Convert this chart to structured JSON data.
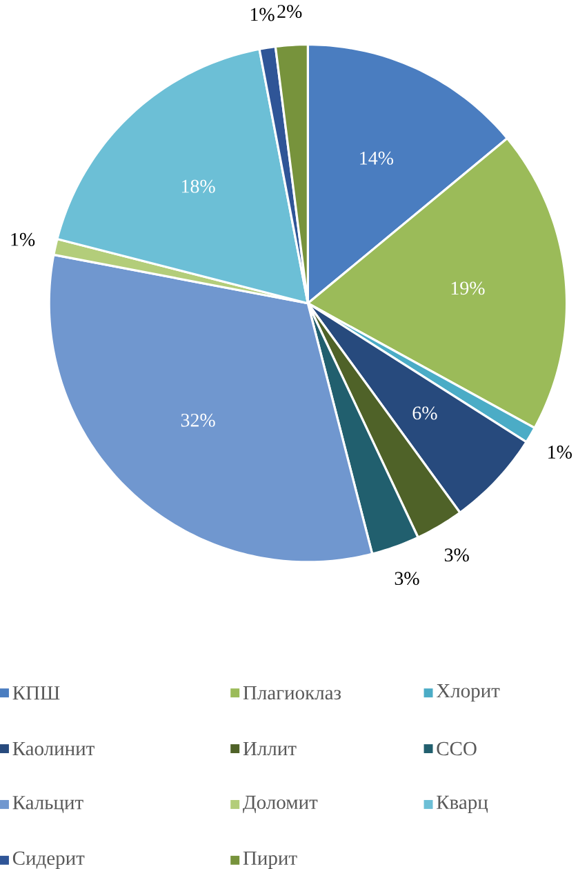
{
  "chart_data": {
    "type": "pie",
    "categories": [
      "КПШ",
      "Плагиоклаз",
      "Хлорит",
      "Каолинит",
      "Иллит",
      "ССО",
      "Кальцит",
      "Доломит",
      "Кварц",
      "Сидерит",
      "Пирит"
    ],
    "values": [
      14,
      19,
      1,
      6,
      3,
      3,
      32,
      1,
      18,
      1,
      2
    ],
    "value_labels": [
      "14%",
      "19%",
      "1%",
      "6%",
      "3%",
      "3%",
      "32%",
      "1%",
      "18%",
      "1%",
      "2%"
    ],
    "colors": [
      "#4a7dc0",
      "#9bbb59",
      "#4bacc6",
      "#274a7d",
      "#4f6228",
      "#215f6e",
      "#7097cf",
      "#b3cd7a",
      "#6cbfd6",
      "#2f5597",
      "#77933c"
    ],
    "legend": "bottom"
  }
}
